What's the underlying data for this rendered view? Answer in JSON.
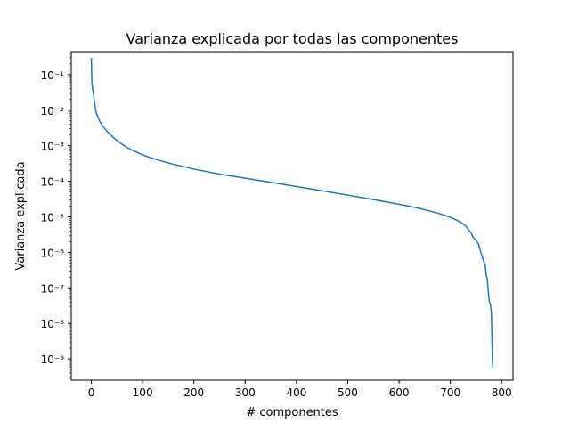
{
  "chart_data": {
    "type": "line",
    "title": "Varianza explicada por todas las componentes",
    "xlabel": "# componentes",
    "ylabel": "Varianza explicada",
    "xlim": [
      -39.15,
      822.15
    ],
    "ylim_log10": [
      -9.6,
      -0.35
    ],
    "yscale": "log",
    "grid": false,
    "x_ticks": [
      0,
      100,
      200,
      300,
      400,
      500,
      600,
      700,
      800
    ],
    "y_tick_exponents": [
      -1,
      -2,
      -3,
      -4,
      -5,
      -6,
      -7,
      -8,
      -9
    ],
    "y_tick_labels": [
      "10⁻¹",
      "10⁻²",
      "10⁻³",
      "10⁻⁴",
      "10⁻⁵",
      "10⁻⁶",
      "10⁻⁷",
      "10⁻⁸",
      "10⁻⁹"
    ],
    "series": [
      {
        "color": "#1f77b4",
        "x": [
          0,
          1,
          2,
          4,
          6,
          8,
          10,
          13,
          16,
          20,
          25,
          30,
          35,
          40,
          45,
          50,
          60,
          70,
          80,
          100,
          120,
          140,
          160,
          180,
          200,
          250,
          300,
          350,
          400,
          450,
          500,
          550,
          600,
          620,
          640,
          660,
          680,
          700,
          710,
          720,
          730,
          740,
          745,
          750,
          755,
          760,
          765,
          768,
          770,
          772,
          774,
          776,
          778,
          780,
          782,
          783
        ],
        "y": [
          0.3,
          0.06,
          0.045,
          0.03,
          0.018,
          0.011,
          0.008,
          0.0065,
          0.005,
          0.004,
          0.0032,
          0.0026,
          0.0022,
          0.0019,
          0.0016,
          0.0014,
          0.0011,
          0.00089,
          0.00075,
          0.00055,
          0.00044,
          0.00036,
          0.0003,
          0.00026,
          0.00022,
          0.00016,
          0.000122,
          9.36e-05,
          7.13e-05,
          5.4e-05,
          4.08e-05,
          3.06e-05,
          2.26e-05,
          1.98e-05,
          1.72e-05,
          1.46e-05,
          1.22e-05,
          9.7e-06,
          8.4e-06,
          7.1e-06,
          5.5e-06,
          3.6e-06,
          2.6e-06,
          2.2e-06,
          1.7e-06,
          9.5e-07,
          5.5e-07,
          4.5e-07,
          2.2e-07,
          1.8e-07,
          8e-08,
          4e-08,
          3.5e-08,
          2e-08,
          9e-10,
          5.5e-10
        ]
      }
    ]
  }
}
